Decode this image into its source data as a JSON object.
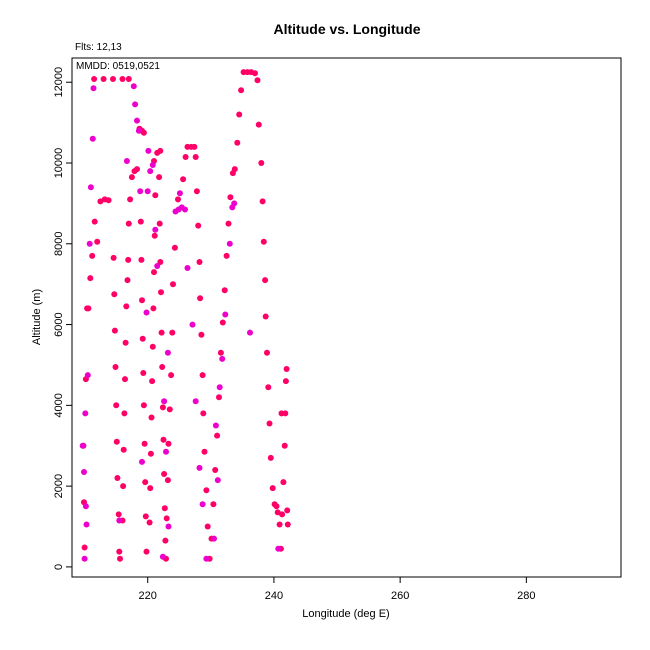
{
  "chart_data": {
    "type": "scatter",
    "title": "Altitude vs. Longitude",
    "flights_label": "Flts: 12,13",
    "dates_label": "MMDD: 0519,0521",
    "xlabel": "Longitude (deg E)",
    "ylabel": "Altitude (m)",
    "xlim": [
      208,
      295
    ],
    "ylim": [
      -250,
      12600
    ],
    "xticks": [
      220,
      240,
      260,
      280
    ],
    "yticks": [
      0,
      2000,
      4000,
      6000,
      8000,
      10000,
      12000
    ],
    "grid": false,
    "colors": {
      "series_a": "#ff0066",
      "series_b": "#ee00cc"
    },
    "series": [
      {
        "color_key": "series_a",
        "points": [
          [
            209.8,
            3000
          ],
          [
            209.9,
            1600
          ],
          [
            210.0,
            480
          ],
          [
            210.2,
            4650
          ],
          [
            210.4,
            6400
          ],
          [
            210.6,
            6400
          ],
          [
            210.9,
            7150
          ],
          [
            211.2,
            7700
          ],
          [
            211.6,
            8550
          ],
          [
            212.0,
            8050
          ],
          [
            212.5,
            9050
          ],
          [
            213.2,
            9100
          ],
          [
            213.8,
            9080
          ],
          [
            211.5,
            12080
          ],
          [
            213.0,
            12080
          ],
          [
            214.5,
            12080
          ],
          [
            216.0,
            12080
          ],
          [
            217.0,
            12080
          ],
          [
            214.6,
            7650
          ],
          [
            214.7,
            6750
          ],
          [
            214.8,
            5850
          ],
          [
            214.9,
            4950
          ],
          [
            215.0,
            4000
          ],
          [
            215.1,
            3100
          ],
          [
            215.2,
            2200
          ],
          [
            215.4,
            1300
          ],
          [
            215.5,
            380
          ],
          [
            215.6,
            200
          ],
          [
            216.0,
            1150
          ],
          [
            216.1,
            2000
          ],
          [
            216.2,
            2900
          ],
          [
            216.3,
            3800
          ],
          [
            216.4,
            4650
          ],
          [
            216.5,
            5550
          ],
          [
            216.6,
            6450
          ],
          [
            216.8,
            7100
          ],
          [
            216.9,
            7600
          ],
          [
            217.0,
            8500
          ],
          [
            217.2,
            9100
          ],
          [
            217.5,
            9650
          ],
          [
            217.9,
            9800
          ],
          [
            218.3,
            9850
          ],
          [
            218.7,
            10850
          ],
          [
            219.1,
            10800
          ],
          [
            219.4,
            10750
          ],
          [
            218.9,
            8550
          ],
          [
            219.0,
            7600
          ],
          [
            219.1,
            6600
          ],
          [
            219.2,
            5650
          ],
          [
            219.3,
            4800
          ],
          [
            219.4,
            4000
          ],
          [
            219.5,
            3050
          ],
          [
            219.6,
            2100
          ],
          [
            219.7,
            1250
          ],
          [
            219.8,
            380
          ],
          [
            220.3,
            1100
          ],
          [
            220.4,
            1950
          ],
          [
            220.5,
            2800
          ],
          [
            220.6,
            3700
          ],
          [
            220.7,
            4600
          ],
          [
            220.8,
            5450
          ],
          [
            220.9,
            6400
          ],
          [
            221.0,
            7300
          ],
          [
            221.1,
            8200
          ],
          [
            221.2,
            9200
          ],
          [
            221.0,
            10050
          ],
          [
            221.5,
            10250
          ],
          [
            222.0,
            10300
          ],
          [
            221.8,
            9650
          ],
          [
            221.9,
            8500
          ],
          [
            222.0,
            7550
          ],
          [
            222.1,
            6800
          ],
          [
            222.2,
            5800
          ],
          [
            222.3,
            4950
          ],
          [
            222.4,
            3950
          ],
          [
            222.5,
            3150
          ],
          [
            222.6,
            2300
          ],
          [
            222.7,
            1450
          ],
          [
            222.8,
            650
          ],
          [
            222.9,
            200
          ],
          [
            223.0,
            1200
          ],
          [
            223.2,
            2150
          ],
          [
            223.3,
            3050
          ],
          [
            223.5,
            3900
          ],
          [
            223.7,
            4750
          ],
          [
            223.9,
            5800
          ],
          [
            224.0,
            7000
          ],
          [
            224.3,
            7900
          ],
          [
            224.8,
            9100
          ],
          [
            225.6,
            9600
          ],
          [
            226.0,
            10150
          ],
          [
            226.3,
            10400
          ],
          [
            226.9,
            10400
          ],
          [
            227.4,
            10400
          ],
          [
            227.6,
            10150
          ],
          [
            227.8,
            9300
          ],
          [
            228.0,
            8450
          ],
          [
            228.2,
            7550
          ],
          [
            228.3,
            6650
          ],
          [
            228.5,
            5750
          ],
          [
            228.7,
            4750
          ],
          [
            228.8,
            3800
          ],
          [
            229.0,
            2850
          ],
          [
            229.3,
            1900
          ],
          [
            229.5,
            1000
          ],
          [
            229.8,
            200
          ],
          [
            230.1,
            700
          ],
          [
            230.4,
            1550
          ],
          [
            230.7,
            2400
          ],
          [
            231.0,
            3250
          ],
          [
            231.3,
            4200
          ],
          [
            231.6,
            5300
          ],
          [
            231.9,
            6050
          ],
          [
            232.2,
            6850
          ],
          [
            232.5,
            7700
          ],
          [
            232.8,
            8500
          ],
          [
            233.1,
            9150
          ],
          [
            233.5,
            9750
          ],
          [
            233.8,
            9850
          ],
          [
            234.2,
            10500
          ],
          [
            234.5,
            11200
          ],
          [
            234.8,
            11800
          ],
          [
            235.2,
            12250
          ],
          [
            235.8,
            12250
          ],
          [
            236.4,
            12250
          ],
          [
            237.0,
            12220
          ],
          [
            237.4,
            12050
          ],
          [
            237.6,
            10950
          ],
          [
            238.0,
            10000
          ],
          [
            238.2,
            9050
          ],
          [
            238.4,
            8050
          ],
          [
            238.6,
            7100
          ],
          [
            238.7,
            6200
          ],
          [
            238.9,
            5300
          ],
          [
            239.1,
            4450
          ],
          [
            239.3,
            3550
          ],
          [
            239.5,
            2700
          ],
          [
            239.8,
            1950
          ],
          [
            240.1,
            1550
          ],
          [
            240.4,
            1500
          ],
          [
            240.6,
            1350
          ],
          [
            240.9,
            1050
          ],
          [
            241.1,
            450
          ],
          [
            241.3,
            1300
          ],
          [
            241.5,
            2100
          ],
          [
            241.7,
            3000
          ],
          [
            241.8,
            3800
          ],
          [
            241.9,
            4600
          ],
          [
            242.0,
            4900
          ],
          [
            242.1,
            1400
          ],
          [
            242.2,
            1050
          ],
          [
            241.2,
            3800
          ]
        ]
      },
      {
        "color_key": "series_b",
        "points": [
          [
            209.9,
            2350
          ],
          [
            210.1,
            3800
          ],
          [
            210.3,
            1050
          ],
          [
            210.5,
            4750
          ],
          [
            210.8,
            8000
          ],
          [
            211.0,
            9400
          ],
          [
            211.3,
            10600
          ],
          [
            211.4,
            11850
          ],
          [
            210.0,
            200
          ],
          [
            210.2,
            1500
          ],
          [
            217.8,
            11900
          ],
          [
            218.0,
            11450
          ],
          [
            218.3,
            11050
          ],
          [
            218.6,
            10800
          ],
          [
            218.8,
            9300
          ],
          [
            220.1,
            10300
          ],
          [
            220.4,
            9800
          ],
          [
            220.8,
            9950
          ],
          [
            221.2,
            8350
          ],
          [
            220.0,
            9300
          ],
          [
            219.8,
            6300
          ],
          [
            221.5,
            7450
          ],
          [
            222.6,
            4100
          ],
          [
            222.9,
            2850
          ],
          [
            223.3,
            1000
          ],
          [
            224.4,
            8800
          ],
          [
            224.9,
            8850
          ],
          [
            225.4,
            8900
          ],
          [
            225.9,
            8850
          ],
          [
            226.3,
            7400
          ],
          [
            227.1,
            6000
          ],
          [
            227.6,
            4100
          ],
          [
            228.2,
            2450
          ],
          [
            228.7,
            1550
          ],
          [
            230.5,
            700
          ],
          [
            230.8,
            3500
          ],
          [
            231.4,
            4450
          ],
          [
            231.8,
            5150
          ],
          [
            232.3,
            6250
          ],
          [
            233.4,
            8900
          ],
          [
            233.7,
            9000
          ],
          [
            236.2,
            5800
          ],
          [
            229.3,
            200
          ],
          [
            222.4,
            250
          ],
          [
            215.5,
            1150
          ],
          [
            209.7,
            3000
          ],
          [
            219.1,
            2600
          ],
          [
            223.2,
            5300
          ],
          [
            225.1,
            9250
          ],
          [
            231.1,
            2150
          ],
          [
            233.0,
            8000
          ],
          [
            240.7,
            450
          ],
          [
            216.7,
            10050
          ]
        ]
      }
    ]
  }
}
